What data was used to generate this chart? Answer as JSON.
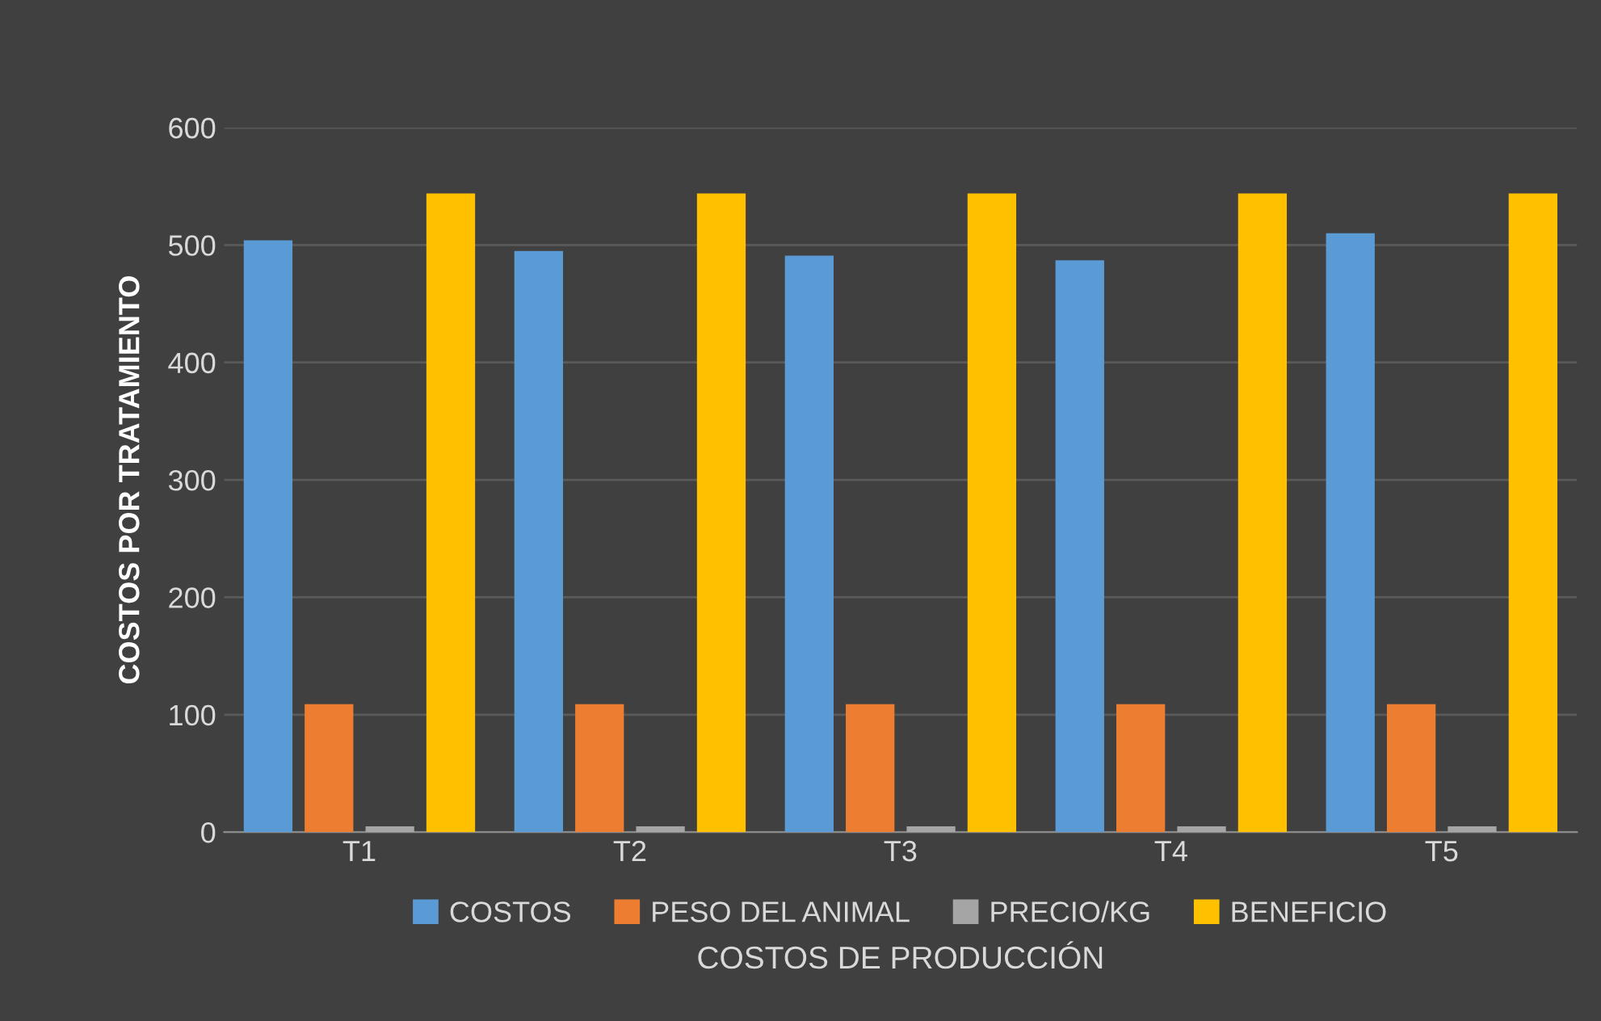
{
  "chart_data": {
    "type": "bar",
    "xlabel": "COSTOS DE PRODUCCIÓN",
    "ylabel": "COSTOS POR TRATAMIENTO",
    "categories": [
      "T1",
      "T2",
      "T3",
      "T4",
      "T5"
    ],
    "series": [
      {
        "name": "COSTOS",
        "color": "#5b9bd5",
        "values": [
          504,
          495,
          491,
          487,
          510
        ]
      },
      {
        "name": "PESO DEL ANIMAL",
        "color": "#ed7d31",
        "values": [
          109,
          109,
          109,
          109,
          109
        ]
      },
      {
        "name": "PRECIO/KG",
        "color": "#a5a5a5",
        "values": [
          5,
          5,
          5,
          5,
          5
        ]
      },
      {
        "name": "BENEFICIO",
        "color": "#ffc000",
        "values": [
          544,
          544,
          544,
          544,
          544
        ]
      }
    ],
    "ylim": [
      0,
      600
    ],
    "yticks": [
      0,
      100,
      200,
      300,
      400,
      500,
      600
    ],
    "grid": "y",
    "legend": "bottom"
  }
}
